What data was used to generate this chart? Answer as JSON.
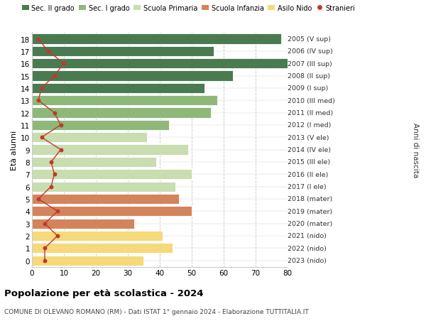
{
  "ages": [
    18,
    17,
    16,
    15,
    14,
    13,
    12,
    11,
    10,
    9,
    8,
    7,
    6,
    5,
    4,
    3,
    2,
    1,
    0
  ],
  "bar_values": [
    78,
    57,
    80,
    63,
    54,
    58,
    56,
    43,
    36,
    49,
    39,
    50,
    45,
    46,
    50,
    32,
    41,
    44,
    35
  ],
  "bar_colors": [
    "#4a7a50",
    "#4a7a50",
    "#4a7a50",
    "#4a7a50",
    "#4a7a50",
    "#8db87a",
    "#8db87a",
    "#8db87a",
    "#c8ddb0",
    "#c8ddb0",
    "#c8ddb0",
    "#c8ddb0",
    "#c8ddb0",
    "#d4845a",
    "#d4845a",
    "#d4845a",
    "#f5d97a",
    "#f5d97a",
    "#f5d97a"
  ],
  "stranieri_values": [
    2,
    5,
    10,
    7,
    3,
    2,
    7,
    9,
    3,
    9,
    6,
    7,
    6,
    2,
    8,
    4,
    8,
    4,
    4
  ],
  "right_labels": [
    "2005 (V sup)",
    "2006 (IV sup)",
    "2007 (III sup)",
    "2008 (II sup)",
    "2009 (I sup)",
    "2010 (III med)",
    "2011 (II med)",
    "2012 (I med)",
    "2013 (V ele)",
    "2014 (IV ele)",
    "2015 (III ele)",
    "2016 (II ele)",
    "2017 (I ele)",
    "2018 (mater)",
    "2019 (mater)",
    "2020 (mater)",
    "2021 (nido)",
    "2022 (nido)",
    "2023 (nido)"
  ],
  "legend_labels": [
    "Sec. II grado",
    "Sec. I grado",
    "Scuola Primaria",
    "Scuola Infanzia",
    "Asilo Nido",
    "Stranieri"
  ],
  "legend_colors": [
    "#4a7a50",
    "#8db87a",
    "#c8ddb0",
    "#d4845a",
    "#f5d97a",
    "#c0392b"
  ],
  "ylabel": "Età alunni",
  "right_ylabel": "Anni di nascita",
  "title": "Popolazione per età scolastica - 2024",
  "subtitle": "COMUNE DI OLEVANO ROMANO (RM) - Dati ISTAT 1° gennaio 2024 - Elaborazione TUTTITALIA.IT",
  "xlim": [
    0,
    80
  ],
  "xticks": [
    0,
    10,
    20,
    30,
    40,
    50,
    60,
    70,
    80
  ],
  "bg_color": "#ffffff",
  "grid_color": "#cccccc",
  "bar_edgecolor": "#ffffff",
  "stranieri_color": "#c0392b",
  "stranieri_linecolor": "#c0392b"
}
